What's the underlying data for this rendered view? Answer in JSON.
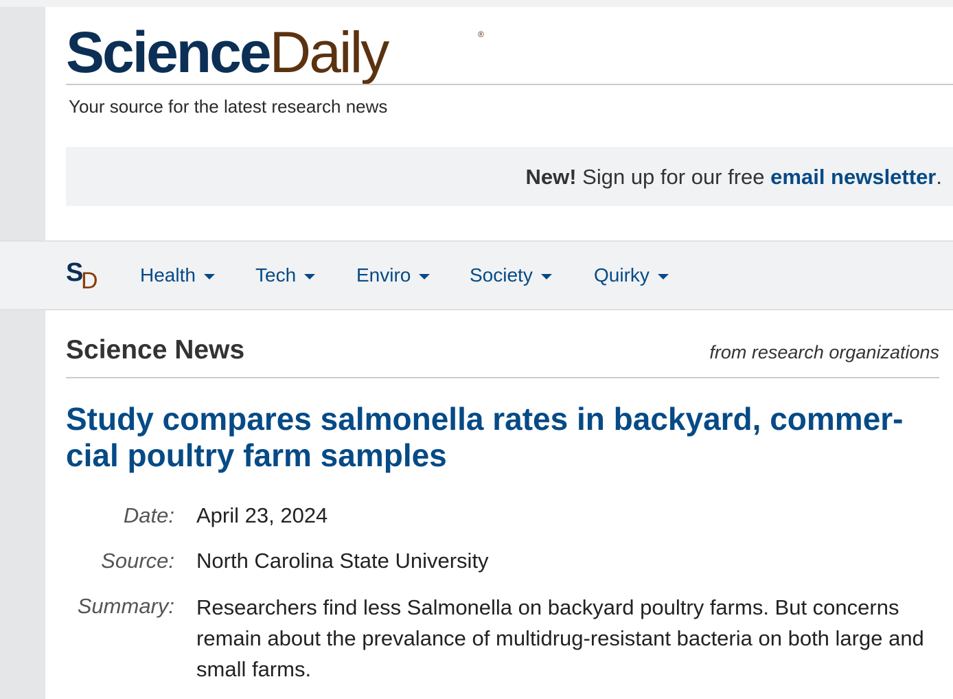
{
  "header": {
    "logo_science": "Science",
    "logo_daily": "Daily",
    "logo_reg": "®",
    "tagline": "Your source for the latest research news"
  },
  "newsletter": {
    "new_label": "New!",
    "text": " Sign up for our free ",
    "link": "email newsletter",
    "end": "."
  },
  "nav": {
    "logo_s": "S",
    "logo_d": "D",
    "items": [
      {
        "label": "Health"
      },
      {
        "label": "Tech"
      },
      {
        "label": "Enviro"
      },
      {
        "label": "Society"
      },
      {
        "label": "Quirky"
      }
    ]
  },
  "section": {
    "title": "Science News",
    "subtitle": "from research organizations"
  },
  "article": {
    "headline": "Study compares salmonella rates in backyard, commer-cial poultry farm samples",
    "date_label": "Date:",
    "date": "April 23, 2024",
    "source_label": "Source:",
    "source": "North Carolina State University",
    "summary_label": "Summary:",
    "summary": "Researchers find less Salmonella on backyard poultry farms. But concerns remain about the prevalance of multidrug-resistant bacteria on both large and small farms."
  },
  "colors": {
    "brand_blue": "#0c2f55",
    "brand_brown": "#5b3210",
    "link_blue": "#064a86"
  }
}
